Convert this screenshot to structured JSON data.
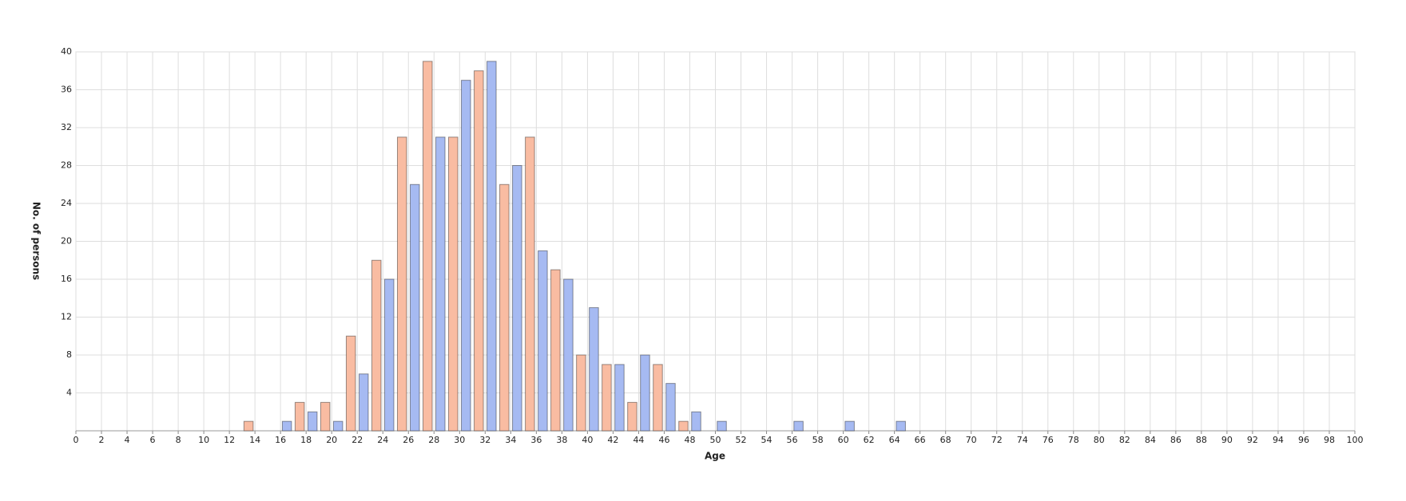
{
  "chart_data": {
    "type": "bar",
    "x_label": "Age",
    "y_label": "No. of persons",
    "series": [
      {
        "color": "#f9bca2",
        "x": [
          13,
          17,
          19,
          21,
          23,
          25,
          27,
          29,
          31,
          33,
          35,
          37,
          39,
          41,
          43,
          45,
          47
        ],
        "values": [
          1,
          3,
          3,
          10,
          18,
          31,
          39,
          31,
          38,
          26,
          31,
          17,
          8,
          7,
          3,
          7,
          1
        ]
      },
      {
        "color": "#a6baf2",
        "x": [
          16,
          18,
          20,
          22,
          24,
          26,
          28,
          30,
          32,
          34,
          36,
          38,
          40,
          42,
          44,
          46,
          48,
          50,
          56,
          60,
          64
        ],
        "values": [
          1,
          2,
          1,
          6,
          16,
          26,
          31,
          37,
          39,
          28,
          19,
          16,
          13,
          7,
          8,
          5,
          2,
          1,
          1,
          1,
          1
        ]
      }
    ],
    "xlim": [
      0,
      100
    ],
    "xticks": [
      0,
      2,
      4,
      6,
      8,
      10,
      12,
      14,
      16,
      18,
      20,
      22,
      24,
      26,
      28,
      30,
      32,
      34,
      36,
      38,
      40,
      42,
      44,
      46,
      48,
      50,
      52,
      54,
      56,
      58,
      60,
      62,
      64,
      66,
      68,
      70,
      72,
      74,
      76,
      78,
      80,
      82,
      84,
      86,
      88,
      90,
      92,
      94,
      96,
      98,
      100
    ],
    "ylim": [
      0,
      40
    ],
    "yticks": [
      4,
      8,
      12,
      16,
      20,
      24,
      28,
      32,
      36,
      40
    ],
    "grid": true
  }
}
